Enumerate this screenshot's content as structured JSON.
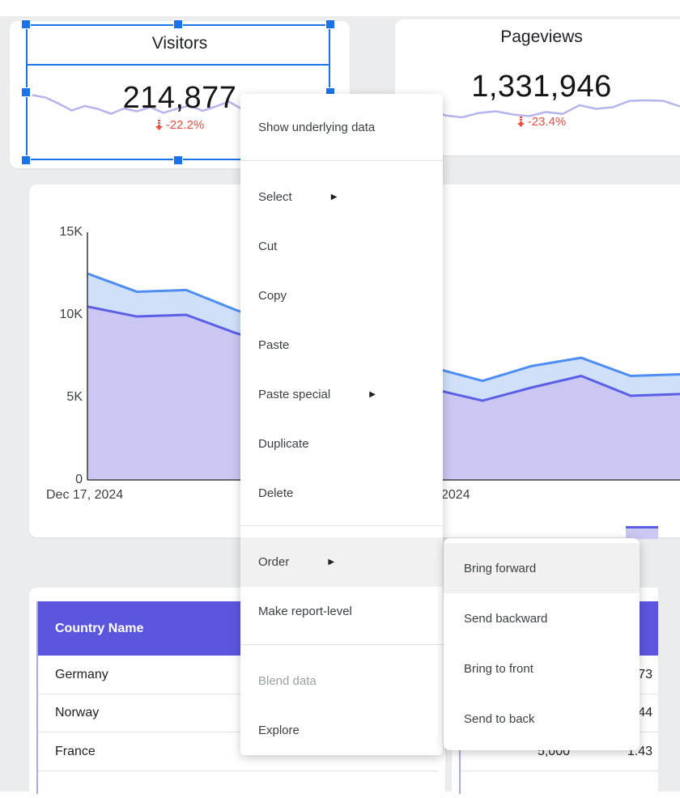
{
  "colors": {
    "sel": "#1a73e8",
    "th": "#5b55e0",
    "red": "#ea4c41",
    "s1": "#4e8df2",
    "s1fill": "#cfe0f8",
    "s2": "#5a5fe6",
    "s2fill": "#cac7f3",
    "spark": "#b6b4ec"
  },
  "icons": {
    "submenu_arrow": "▶"
  },
  "scorecards": {
    "visitors": {
      "title": "Visitors",
      "value": "214,877",
      "delta": "-22.2%",
      "sparkline": [
        0.15,
        0.25,
        0.5,
        0.78,
        0.6,
        0.72,
        0.92,
        0.7,
        0.82,
        0.65,
        0.88,
        0.72,
        0.58,
        0.8,
        0.62,
        0.42,
        0.72,
        0.55,
        0.65,
        0.5,
        0.6,
        0.45,
        0.55,
        0.5
      ]
    },
    "pageviews": {
      "title": "Pageviews",
      "value": "1,331,946",
      "delta": "-23.4%",
      "sparkline": [
        0.55,
        0.65,
        0.42,
        0.72,
        0.8,
        0.62,
        0.55,
        0.68,
        0.75,
        0.58,
        0.66,
        0.3,
        0.45,
        0.38,
        0.12,
        0.1,
        0.12,
        0.35
      ]
    }
  },
  "chart_data": {
    "type": "area",
    "title": "",
    "y_ticks": [
      "15K",
      "10K",
      "5K",
      "0"
    ],
    "y_axis_range": [
      0,
      15000
    ],
    "x_axis_labels": [
      "Dec 17, 2024",
      "2024"
    ],
    "grid": false,
    "legend_position": "bottom-right-fragment",
    "series": [
      {
        "name": "upper-blue-series",
        "values_k": [
          12.5,
          11.4,
          11.5,
          10.3,
          9.3,
          8.3,
          7.4,
          6.8,
          6.0,
          6.9,
          7.4,
          6.3,
          6.4
        ]
      },
      {
        "name": "lower-purple-series",
        "values_k": [
          10.5,
          9.9,
          10.0,
          8.9,
          8.0,
          7.1,
          6.3,
          5.5,
          4.8,
          5.6,
          6.3,
          5.1,
          5.2
        ]
      }
    ]
  },
  "context_menu": {
    "items": [
      {
        "label": "Show underlying data"
      },
      {
        "label": "Select"
      },
      {
        "label": "Cut"
      },
      {
        "label": "Copy"
      },
      {
        "label": "Paste"
      },
      {
        "label": "Paste special"
      },
      {
        "label": "Duplicate"
      },
      {
        "label": "Delete"
      },
      {
        "label": "Order"
      },
      {
        "label": "Make report-level"
      },
      {
        "label": "Blend data"
      },
      {
        "label": "Explore"
      }
    ]
  },
  "order_submenu": {
    "items": [
      {
        "label": "Bring forward"
      },
      {
        "label": "Send backward"
      },
      {
        "label": "Bring to front"
      },
      {
        "label": "Send to back"
      }
    ]
  },
  "left_table": {
    "header": "Country Name",
    "rows": [
      "Germany",
      "Norway",
      "France",
      ""
    ]
  },
  "right_table": {
    "header": "",
    "col2": [
      "",
      "",
      "5,000"
    ],
    "col3": [
      "1.73",
      "1.44",
      "1.43"
    ]
  }
}
